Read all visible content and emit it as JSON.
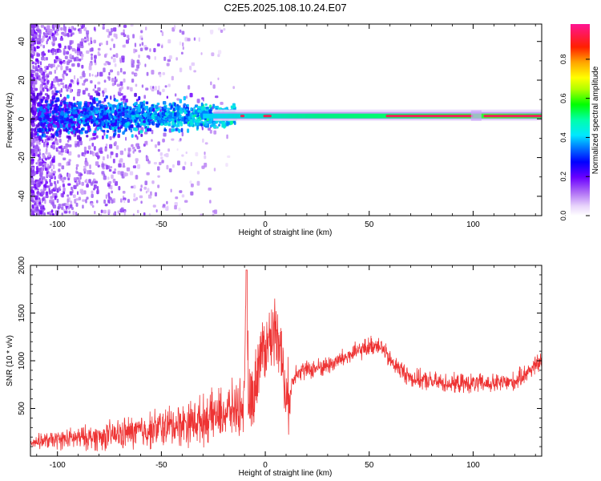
{
  "title": "C2E5.2025.108.10.24.E07",
  "colors": {
    "snr_line": "#ee3333",
    "ridge_strong": "#ee2255",
    "ridge_mid": "#00cc66",
    "noise_light": "#d9b8f5",
    "noise_dark": "#7a00ff"
  },
  "chart_data": [
    {
      "type": "heatmap",
      "title": "C2E5.2025.108.10.24.E07",
      "xlabel": "Height of straight line (km)",
      "ylabel": "Frequency (Hz)",
      "xlim": [
        -113,
        133
      ],
      "ylim": [
        -50,
        49
      ],
      "xticks": [
        -100,
        -50,
        0,
        50,
        100
      ],
      "yticks": [
        -40,
        -20,
        0,
        20,
        40
      ],
      "grid": false,
      "colorbar": {
        "label": "Normalized spectral amplitude",
        "range": [
          0,
          0.98
        ],
        "ticks": [
          0.0,
          0.2,
          0.4,
          0.6,
          0.8
        ],
        "tick_labels": [
          "0.0",
          "0.2",
          "0.4",
          "0.6",
          "0.8"
        ],
        "colormap": "rainbow (white → purple → blue → cyan → green → yellow → orange → red → pink)"
      },
      "features": {
        "ridge_frequency_hz": 1.5,
        "broadband_noise_x_range": [
          -113,
          -25
        ],
        "narrow_ridge_x_range": [
          -25,
          133
        ]
      }
    },
    {
      "type": "line",
      "xlabel": "Height of straight line (km)",
      "ylabel": "SNR (10 * v/v)",
      "xlim": [
        -113,
        133
      ],
      "ylim": [
        0,
        2000
      ],
      "xticks": [
        -100,
        -50,
        0,
        50,
        100
      ],
      "yticks": [
        500,
        1000,
        1500,
        2000
      ],
      "grid": false,
      "series": [
        {
          "color": "#ee3333",
          "x": [
            -113,
            -100,
            -90,
            -80,
            -70,
            -60,
            -50,
            -40,
            -30,
            -25,
            -20,
            -15,
            -12,
            -10,
            -9,
            -8,
            -5,
            -3,
            0,
            3,
            5,
            7,
            10,
            15,
            20,
            30,
            40,
            50,
            55,
            60,
            70,
            80,
            90,
            100,
            110,
            120,
            130,
            133
          ],
          "y": [
            150,
            170,
            190,
            200,
            230,
            260,
            300,
            340,
            380,
            420,
            450,
            500,
            520,
            540,
            1950,
            520,
            700,
            1050,
            1150,
            1250,
            1350,
            1250,
            550,
            900,
            900,
            950,
            1050,
            1150,
            1180,
            1000,
            820,
            780,
            760,
            760,
            760,
            780,
            950,
            1000
          ]
        }
      ]
    }
  ]
}
